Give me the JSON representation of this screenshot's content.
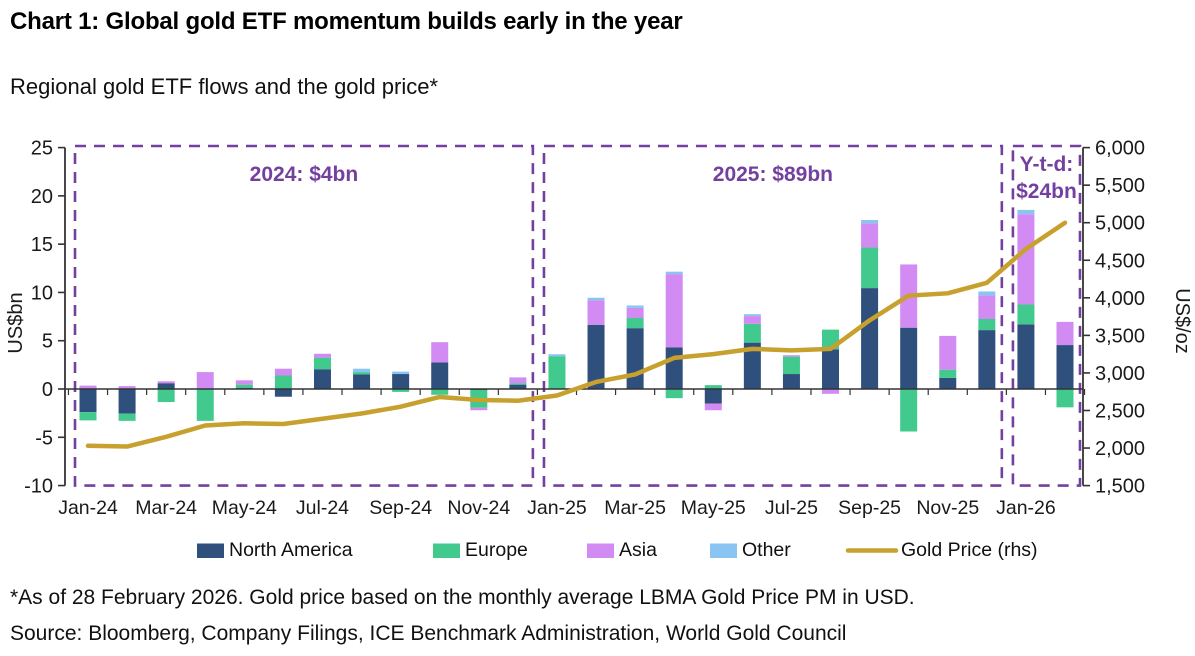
{
  "page": {
    "title": "Chart 1: Global gold ETF momentum builds early in the year",
    "subtitle": "Regional gold ETF flows and the gold price*",
    "footnote": "*As of 28 February 2026. Gold price based on the monthly average LBMA Gold Price PM in USD.",
    "source": "Source: Bloomberg, Company Filings, ICE Benchmark Administration, World Gold Council"
  },
  "colors": {
    "north_america": "#2F4F7D",
    "europe": "#41C98E",
    "asia": "#D28BF2",
    "other": "#8AC4F2",
    "gold_line": "#C7A02E",
    "annotation_purple": "#7340A0",
    "axis": "#333333",
    "tick_text": "#1a1a1a"
  },
  "chart_data": {
    "type": "bar",
    "subtype": "stacked-bars-with-line",
    "categories": [
      "Jan-24",
      "Feb-24",
      "Mar-24",
      "Apr-24",
      "May-24",
      "Jun-24",
      "Jul-24",
      "Aug-24",
      "Sep-24",
      "Oct-24",
      "Nov-24",
      "Dec-24",
      "Jan-25",
      "Feb-25",
      "Mar-25",
      "Apr-25",
      "May-25",
      "Jun-25",
      "Jul-25",
      "Aug-25",
      "Sep-25",
      "Oct-25",
      "Nov-25",
      "Dec-25",
      "Jan-26",
      "Feb-26"
    ],
    "x_tick_labels": [
      "Jan-24",
      "Mar-24",
      "May-24",
      "Jul-24",
      "Sep-24",
      "Nov-24",
      "Jan-25",
      "Mar-25",
      "May-25",
      "Jul-25",
      "Sep-25",
      "Nov-25",
      "Jan-26"
    ],
    "series": [
      {
        "name": "North America",
        "color_key": "north_america",
        "values": [
          -2.4,
          -2.55,
          0.6,
          0,
          0.1,
          -0.8,
          2.05,
          1.5,
          1.55,
          2.75,
          -0.1,
          0.45,
          0,
          6.65,
          6.3,
          4.3,
          -1.5,
          4.8,
          1.55,
          4.1,
          10.45,
          6.35,
          1.15,
          6.1,
          6.7,
          4.55
        ]
      },
      {
        "name": "Europe",
        "color_key": "europe",
        "values": [
          -0.85,
          -0.75,
          -1.35,
          -3.3,
          0.35,
          1.4,
          1.2,
          0.25,
          -0.3,
          -0.6,
          -1.85,
          0.15,
          3.4,
          0,
          1.05,
          -0.95,
          0.4,
          1.95,
          1.8,
          2.05,
          4.2,
          -4.4,
          0.85,
          1.15,
          2.05,
          -1.9
        ]
      },
      {
        "name": "Asia",
        "color_key": "asia",
        "values": [
          0.35,
          0.3,
          0.2,
          1.75,
          0.45,
          0.7,
          0.4,
          0,
          0,
          2.1,
          -0.25,
          0.6,
          0,
          2.55,
          1.05,
          7.6,
          -0.7,
          0.8,
          0.15,
          -0.5,
          2.5,
          6.55,
          3.5,
          2.45,
          9.35,
          2.4
        ]
      },
      {
        "name": "Other",
        "color_key": "other",
        "values": [
          0,
          0,
          0,
          0,
          0,
          0,
          0,
          0.35,
          0.25,
          0,
          0,
          0,
          0.2,
          0.25,
          0.25,
          0.25,
          0,
          0.2,
          0,
          0,
          0.35,
          0,
          0,
          0.4,
          0.45,
          0
        ]
      }
    ],
    "line_series": {
      "name": "Gold Price (rhs)",
      "color_key": "gold_line",
      "axis": "right",
      "values": [
        2030,
        2020,
        2150,
        2300,
        2330,
        2320,
        2390,
        2460,
        2550,
        2680,
        2640,
        2630,
        2700,
        2880,
        2980,
        3200,
        3250,
        3320,
        3300,
        3320,
        3700,
        4030,
        4060,
        4200,
        4650,
        5000
      ]
    },
    "left_axis": {
      "title": "US$bn",
      "min": -10,
      "max": 25,
      "ticks": [
        25,
        20,
        15,
        10,
        5,
        0,
        -5,
        -10
      ]
    },
    "right_axis": {
      "title": "US$/oz",
      "min": 1500,
      "max": 6000,
      "ticks": [
        6000,
        5500,
        5000,
        4500,
        4000,
        3500,
        3000,
        2500,
        2000,
        1500
      ]
    },
    "groups": [
      {
        "label": "2024: $4bn",
        "from_index": 0,
        "to_index": 11,
        "label_lines": [
          "2024: $4bn"
        ]
      },
      {
        "label": "2025: $89bn",
        "from_index": 12,
        "to_index": 23,
        "label_lines": [
          "2025: $89bn"
        ]
      },
      {
        "label": "Y-t-d: $24bn",
        "from_index": 24,
        "to_index": 25,
        "label_lines": [
          "Y-t-d:",
          "$24bn"
        ]
      }
    ],
    "legend": [
      {
        "label": "North America",
        "color_key": "north_america",
        "marker": "rect"
      },
      {
        "label": "Europe",
        "color_key": "europe",
        "marker": "rect"
      },
      {
        "label": "Asia",
        "color_key": "asia",
        "marker": "rect"
      },
      {
        "label": "Other",
        "color_key": "other",
        "marker": "rect"
      },
      {
        "label": "Gold Price (rhs)",
        "color_key": "gold_line",
        "marker": "line"
      }
    ],
    "legend_position": "bottom",
    "grid": false
  }
}
